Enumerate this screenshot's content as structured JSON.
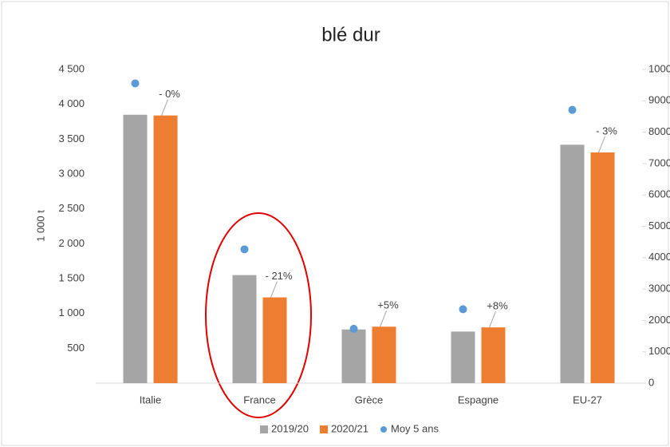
{
  "chart_data": {
    "type": "bar",
    "title": "blé dur",
    "y_label": "1 000 t",
    "categories": [
      "Italie",
      "France",
      "Grèce",
      "Espagne",
      "EU-27"
    ],
    "series": [
      {
        "name": "2019/20",
        "color": "#a5a5a5",
        "values": [
          3850,
          1550,
          770,
          740,
          3420
        ]
      },
      {
        "name": "2020/21",
        "color": "#ed7d31",
        "values": [
          3840,
          1230,
          810,
          800,
          3310
        ]
      },
      {
        "name": "Moy 5 ans",
        "color": "#5b9bd5",
        "type": "scatter",
        "values": [
          4300,
          1920,
          780,
          1060,
          3920
        ]
      }
    ],
    "annotations": [
      "- 0%",
      "- 21%",
      "+5%",
      "+8%",
      "- 3%"
    ],
    "ylim": [
      0,
      4500
    ],
    "yticks": [
      500,
      {
        "value": 1000,
        "label": "1 000"
      },
      {
        "value": 1500,
        "label": "1 500"
      },
      {
        "value": 2000,
        "label": "2 000"
      },
      {
        "value": 2500,
        "label": "2 500"
      },
      {
        "value": 3000,
        "label": "3 000"
      },
      {
        "value": 3500,
        "label": "3 500"
      },
      {
        "value": 4000,
        "label": "4 000"
      },
      {
        "value": 4500,
        "label": "4 500"
      }
    ],
    "y2lim": [
      0,
      10000
    ],
    "y2ticks": [
      0,
      1000,
      2000,
      3000,
      4000,
      5000,
      6000,
      7000,
      8000,
      9000,
      10000
    ],
    "grid": false
  }
}
